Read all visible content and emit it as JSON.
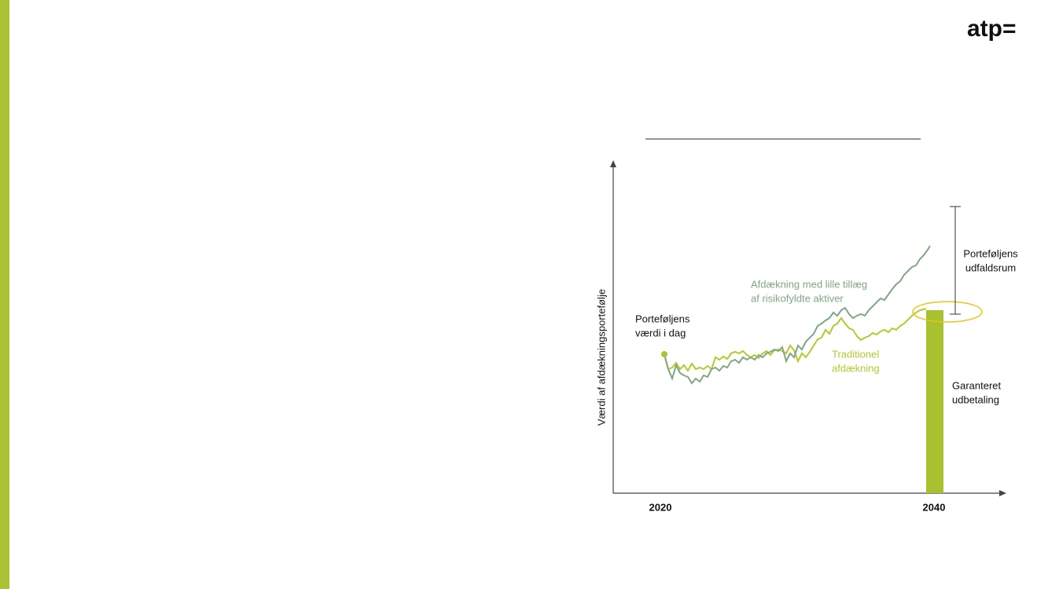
{
  "logo": "atp=",
  "diagram": {
    "y_axis_label": "Værdi af afdækningsportefølje",
    "x_labels": [
      "2020",
      "2040"
    ],
    "today_label": [
      "Porteføljens",
      "værdi i dag"
    ],
    "risky_label": [
      "Afdækning med lille tillæg",
      "af risikofyldte aktiver"
    ],
    "traditional_label": [
      "Traditionel",
      "afdækning"
    ],
    "range_label": [
      "Porteføljens",
      "udfaldsrum"
    ],
    "guaranteed_label": [
      "Garanteret",
      "udbetaling"
    ]
  }
}
